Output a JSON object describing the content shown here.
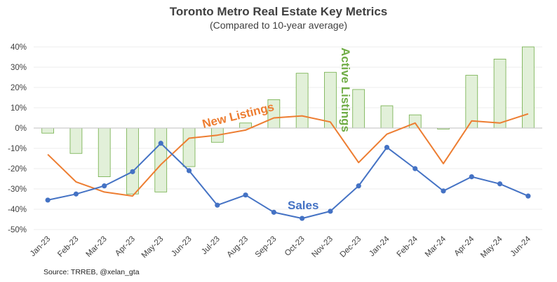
{
  "chart_data": {
    "type": "bar+line",
    "title": "Toronto Metro Real Estate Key Metrics",
    "subtitle": "(Compared to 10-year average)",
    "source": "Source: TRREB, @xelan_gta",
    "categories": [
      "Jan-23",
      "Feb-23",
      "Mar-23",
      "Apr-23",
      "May-23",
      "Jun-23",
      "Jul-23",
      "Aug-23",
      "Sep-23",
      "Oct-23",
      "Nov-23",
      "Dec-23",
      "Jan-24",
      "Feb-24",
      "Mar-24",
      "Apr-24",
      "May-24",
      "Jun-24"
    ],
    "ylim": [
      -50,
      40
    ],
    "yticks": [
      40,
      30,
      20,
      10,
      0,
      -10,
      -20,
      -30,
      -40,
      -50
    ],
    "ytick_labels": [
      "40%",
      "30%",
      "20%",
      "10%",
      "0%",
      "-10%",
      "-20%",
      "-30%",
      "-40%",
      "-50%"
    ],
    "grid": true,
    "series": [
      {
        "name": "Active Listings",
        "kind": "bar",
        "color": "#70ad47",
        "fill": "#e2f0d9",
        "values": [
          -2.5,
          -12.5,
          -24,
          -32.5,
          -31.5,
          -19,
          -7,
          2.5,
          14,
          27,
          27.5,
          19,
          11,
          6.5,
          -0.5,
          26,
          34,
          40
        ]
      },
      {
        "name": "New Listings",
        "kind": "line",
        "color": "#ed7d31",
        "values": [
          -13,
          -26.5,
          -31.5,
          -33.5,
          -18,
          -5,
          -3.5,
          -1,
          5,
          6,
          3,
          -17,
          -3,
          2.5,
          -17.5,
          3.5,
          2.5,
          7
        ]
      },
      {
        "name": "Sales",
        "kind": "line",
        "color": "#4472c4",
        "values": [
          -35.5,
          -32.5,
          -28.5,
          -21.5,
          -7.5,
          -21,
          -38,
          -33,
          -41.5,
          -44.5,
          -41,
          -28.5,
          -9.5,
          -20,
          -31,
          -24,
          -27.5,
          -33.5
        ]
      }
    ]
  }
}
